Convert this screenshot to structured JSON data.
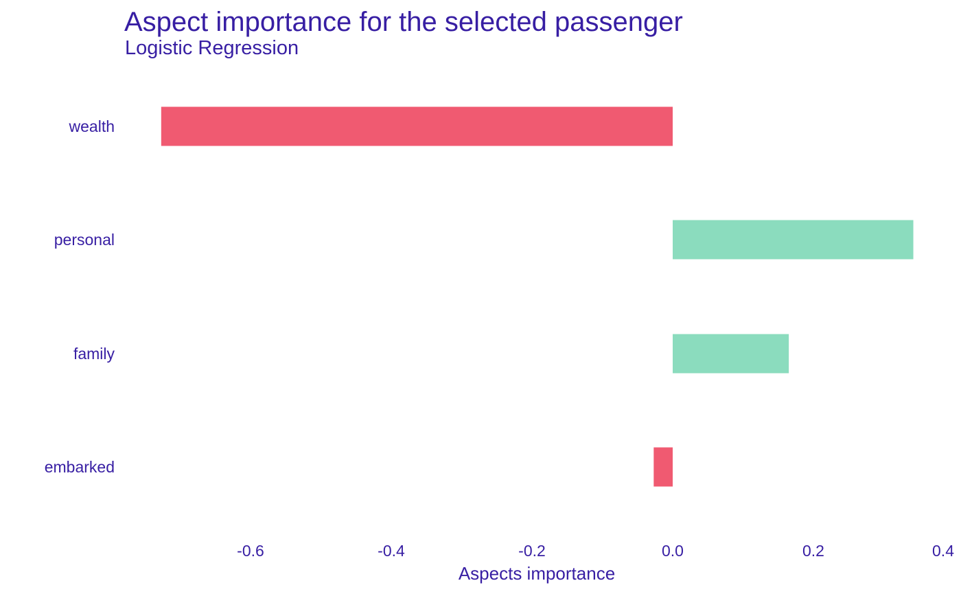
{
  "chart_data": {
    "type": "bar",
    "orientation": "horizontal",
    "title": "Aspect importance for the selected passenger",
    "subtitle": "Logistic Regression",
    "xlabel": "Aspects importance",
    "ylabel": "",
    "categories": [
      "wealth",
      "personal",
      "family",
      "embarked"
    ],
    "values": [
      -0.727,
      0.342,
      0.165,
      -0.027
    ],
    "xlim": [
      -0.76,
      0.4
    ],
    "xticks": [
      -0.6,
      -0.4,
      -0.2,
      0.0,
      0.2,
      0.4
    ],
    "xtick_labels": [
      "-0.6",
      "-0.4",
      "-0.2",
      "0.0",
      "0.2",
      "0.4"
    ],
    "grid": false,
    "colors": {
      "negative": "#f05a71",
      "positive": "#8bdcbe",
      "text": "#371ea3"
    }
  }
}
